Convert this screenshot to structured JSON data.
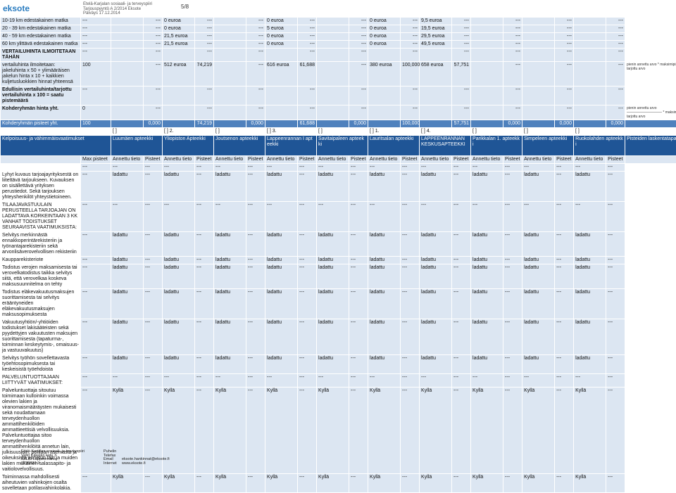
{
  "header": {
    "logo": "eksote",
    "org": "Etelä-Karjalan sosiaali- ja terveyspiiri",
    "doc": "Tarjouspyyntö A 2/2014 Eksote",
    "date": "Päiväys 17.12.2014",
    "page": "5/8"
  },
  "summary": {
    "rows": [
      {
        "label": "10-19 km edestakainen matka",
        "cells": [
          "---",
          null,
          "---",
          "0 euroa",
          "---",
          null,
          "---",
          "0 euroa",
          "---",
          null,
          "---",
          "0 euroa",
          "---",
          "9,5 euroa",
          "---",
          null,
          "---",
          null,
          "---",
          null,
          "---"
        ]
      },
      {
        "label": "20 - 39 km edestakainen matka",
        "cells": [
          "---",
          null,
          "---",
          "0 euroa",
          "---",
          null,
          "---",
          "5 euroa",
          "---",
          null,
          "---",
          "0 euroa",
          "---",
          "19,5 euroa",
          "---",
          null,
          "---",
          null,
          "---",
          null,
          "---"
        ]
      },
      {
        "label": "40 - 59 km edestakainen matka",
        "cells": [
          "---",
          null,
          "---",
          "21,5 euroa",
          "---",
          null,
          "---",
          "0 euroa",
          "---",
          null,
          "---",
          "0 euroa",
          "---",
          "29,5 euroa",
          "---",
          null,
          "---",
          null,
          "---",
          null,
          "---"
        ]
      },
      {
        "label": "60 km ylittävä edestakainen matka",
        "cells": [
          "---",
          null,
          "---",
          "21,5 euroa",
          "---",
          null,
          "---",
          "0 euroa",
          "---",
          null,
          "---",
          "0 euroa",
          "---",
          "49,5 euroa",
          "---",
          null,
          "---",
          null,
          "---",
          null,
          "---"
        ]
      },
      {
        "label": "VERTAILUHINTA ILMOITETAAN TÄHÄN",
        "bold": true,
        "cells": [
          "---",
          null,
          "---",
          null,
          "---",
          null,
          "---",
          null,
          "---",
          null,
          "---",
          null,
          "---",
          null,
          "---",
          null,
          "---",
          null,
          "---",
          null,
          "---"
        ]
      },
      {
        "label": "vertailuhinta ilmoitetaan: jakeluhinta x 50 + ylimääräisen jakelun hinta x 10 + kaikkien kuljetusluokkien hinnat yhteensä",
        "cells": [
          "100",
          null,
          "---",
          "512 euroa",
          "74,219",
          null,
          "---",
          "616 euroa",
          "61,688",
          null,
          "---",
          "380 euroa",
          "100,000",
          "658 euroa",
          "57,751",
          null,
          "---",
          null,
          "---",
          null,
          "---"
        ],
        "note": [
          "pienin annettu arvo * maksimipisteet",
          "tarjottu arvo"
        ]
      },
      {
        "label": "Edullisin vertailuhinta/tarjottu vertailuhinta x 100 = saatu pistemäärä",
        "bold": true,
        "cells": [
          "---",
          null,
          "---",
          null,
          "---",
          null,
          "---",
          null,
          "---",
          null,
          "---",
          null,
          "---",
          null,
          "---",
          null,
          "---",
          null,
          "---",
          null,
          "---"
        ]
      },
      {
        "label": "Kohderyhmän hinta yht.",
        "bold": true,
        "cells": [
          "0",
          null,
          "---",
          null,
          "---",
          null,
          "---",
          null,
          "---",
          null,
          "---",
          null,
          "---",
          null,
          "---",
          null,
          "---",
          null,
          "---",
          null,
          "---"
        ],
        "note": [
          "pienin annettu arvo",
          "—————————— * maksimipisteet",
          "tarjottu arvo"
        ]
      },
      {
        "label": "Kohderyhmän pisteet yht.",
        "total": true,
        "cells": [
          "100",
          null,
          "0,000",
          null,
          "74,219",
          null,
          "0,000",
          null,
          "61,688",
          null,
          "0,000",
          null,
          "100,000",
          null,
          "57,751",
          null,
          "0,000",
          null,
          "0,000",
          null,
          "0,000"
        ]
      },
      {
        "blank": true,
        "cells": [
          null,
          "[ ]",
          null,
          "[ ] 2.",
          null,
          "[ ]",
          null,
          "[ ] 3.",
          null,
          "[ ]",
          null,
          "[ ] 1.",
          null,
          "[ ] 4.",
          null,
          "[ ]",
          null,
          "[ ]",
          null,
          "[ ]",
          null
        ]
      }
    ]
  },
  "requirements": {
    "title": "Kelpoisuus- ja vähimmäisvaatimukset",
    "method": "Pisteiden laskentatapa",
    "pharmacies": [
      "Luumäen apteekki",
      "Yliopiston Apteekki",
      "Joutsenon apteekki",
      "Lappeenrannan I apteekki",
      "Savitaipaleen apteekki",
      "Lauritsalan apteekki",
      "LAPPEENRANNAN KESKUSAPTEEKKI",
      "Parikkalan 1. apteekki",
      "Simpeleen apteekki",
      "Ruokolahden apteekki"
    ],
    "max": "Max pisteet",
    "given": "Annettu tieto",
    "points": "Pisteet",
    "rows": [
      {
        "cells": [
          "---",
          "---",
          "---",
          "---",
          "---",
          "---",
          "---",
          "---",
          "---",
          "---",
          "---",
          "---",
          "---",
          "---",
          "---",
          "---",
          "---",
          "---",
          "---",
          "---",
          "---"
        ]
      },
      {
        "label": "Lyhyt kuvaus tarjoajayrityksestä on liitettävä tarjoukseen. Kuvauksen on sisällettävä yrityksen perustiedot. Sekä tarjouksen yhteyshenkilöt yhteystietoineen.",
        "cells": [
          "---",
          "ladattu",
          "---",
          "ladattu",
          "---",
          "ladattu",
          "---",
          "ladattu",
          "---",
          "ladattu",
          "---",
          "ladattu",
          "---",
          "ladattu",
          "---",
          "ladattu",
          "---",
          "ladattu",
          "---",
          "ladattu",
          "---"
        ]
      },
      {
        "label": "TILAAJAVASTUULAIN PERUSTEELLA TARJOAJAN ON LADATTAVA KORKEINTAAN 3 KK VANHAT TODISTUKSET SEURAAVISTA VAATIMUKSISTA:",
        "cells": [
          "---",
          "---",
          "---",
          "---",
          "---",
          "---",
          "---",
          "---",
          "---",
          "---",
          "---",
          "---",
          "---",
          "---",
          "---",
          "---",
          "---",
          "---",
          "---",
          "---",
          "---"
        ]
      },
      {
        "label": "Selvitys merkinnästä ennakkoperintärekisteriin ja työnantajarekisteriin sekä arvonlisäverovelvollisen rekisteriin",
        "cells": [
          "---",
          "ladattu",
          "---",
          "ladattu",
          "---",
          "ladattu",
          "---",
          "ladattu",
          "---",
          "ladattu",
          "---",
          "ladattu",
          "---",
          "ladattu",
          "---",
          "ladattu",
          "---",
          "ladattu",
          "---",
          "ladattu",
          "---"
        ]
      },
      {
        "label": "Kaupparekisteriote",
        "cells": [
          "---",
          "ladattu",
          "---",
          "ladattu",
          "---",
          "ladattu",
          "---",
          "ladattu",
          "---",
          "ladattu",
          "---",
          "ladattu",
          "---",
          "ladattu",
          "---",
          "ladattu",
          "---",
          "ladattu",
          "---",
          "ladattu",
          "---"
        ]
      },
      {
        "label": "Todistus verojen maksamisesta tai verovelkatodistus taikka selvitys siitä, että verovelkaa koskeva maksusuunnitelma on tehty",
        "cells": [
          "---",
          "ladattu",
          "---",
          "ladattu",
          "---",
          "ladattu",
          "---",
          "ladattu",
          "---",
          "ladattu",
          "---",
          "ladattu",
          "---",
          "ladattu",
          "---",
          "ladattu",
          "---",
          "ladattu",
          "---",
          "ladattu",
          "---"
        ]
      },
      {
        "label": "Todistus eläkevakuutusmaksujen suorittamisesta tai selvitys erääntyneiden eläkevakuutusmaksujen maksusopimuksesta",
        "cells": [
          "---",
          "ladattu",
          "---",
          "ladattu",
          "---",
          "ladattu",
          "---",
          "ladattu",
          "---",
          "ladattu",
          "---",
          "ladattu",
          "---",
          "ladattu",
          "---",
          "ladattu",
          "---",
          "ladattu",
          "---",
          "ladattu",
          "---"
        ]
      },
      {
        "label": "Vakuutusyhtiön/-yhtiöiden todistukset lakisääteisten sekä pyydettyjen vakuutusten maksujen suorittamisesta (tapaturma-, toiminnan keskeytymis-, omaisuus- ja vastuuvakuutus)",
        "cells": [
          "---",
          "ladattu",
          "---",
          "ladattu",
          "---",
          "ladattu",
          "---",
          "ladattu",
          "---",
          "ladattu",
          "---",
          "ladattu",
          "---",
          "ladattu",
          "---",
          "ladattu",
          "---",
          "ladattu",
          "---",
          "ladattu",
          "---"
        ]
      },
      {
        "label": "Selvitys työhön sovellettavasta työehtosopimuksesta tai keskeisistä työehdoista",
        "cells": [
          "---",
          "ladattu",
          "---",
          "ladattu",
          "---",
          "ladattu",
          "---",
          "ladattu",
          "---",
          "ladattu",
          "---",
          "ladattu",
          "---",
          "ladattu",
          "---",
          "ladattu",
          "---",
          "ladattu",
          "---",
          "ladattu",
          "---"
        ]
      },
      {
        "label": "PALVELUNTUOTTAJAAN LIITTYVÄT VAATIMUKSET:",
        "cells": [
          "---",
          "---",
          "---",
          "---",
          "---",
          "---",
          "---",
          "---",
          "---",
          "---",
          "---",
          "---",
          "---",
          "---",
          "---",
          "---",
          "---",
          "---",
          "---",
          "---",
          "---"
        ]
      },
      {
        "label": "Palveluntuottaja sitoutuu toimimaan kulloinkin voimassa olevien lakien ja viranomaismääräysten mukaisesti sekä noudattamaan terveydenhuollon ammattihenkilöiden ammattieettisiä velvollisuuksia. Palveluntuottajaa sitoo terveydenhuollon ammattihenkilöitä annetun lain, julkisuuslain, potilaan asemasta ja oikeuksista annetun lain ja muiden lakien mukainen salassapito- ja vaitiolovelvollisuus.",
        "cells": [
          "---",
          "Kyllä",
          "---",
          "Kyllä",
          "---",
          "Kyllä",
          "---",
          "Kyllä",
          "---",
          "Kyllä",
          "---",
          "Kyllä",
          "---",
          "Kyllä",
          "---",
          "Kyllä",
          "---",
          "Kyllä",
          "---",
          "Kyllä",
          "---"
        ]
      },
      {
        "label": "Toiminnassa mahdollisesti aiheutuvien vahinkojen osalta sovelletaan potilasvahinkolakia.",
        "cells": [
          "---",
          "Kyllä",
          "---",
          "Kyllä",
          "---",
          "Kyllä",
          "---",
          "Kyllä",
          "---",
          "Kyllä",
          "---",
          "Kyllä",
          "---",
          "Kyllä",
          "---",
          "Kyllä",
          "---",
          "Kyllä",
          "---",
          "Kyllä",
          "---"
        ]
      }
    ]
  },
  "footer": {
    "address": [
      "Etelä-Karjalan sosiaali- ja terveyspiiri",
      "Valto Käkelän katu 3",
      "53130 Lappeenranta",
      "0725837-3"
    ],
    "contacts": [
      {
        "label": "Puhelin"
      },
      {
        "label": "Telefax"
      },
      {
        "label": "Email",
        "value": "eksote.hankinnat@eksote.fi"
      },
      {
        "label": "Internet",
        "value": "www.eksote.fi"
      }
    ]
  }
}
